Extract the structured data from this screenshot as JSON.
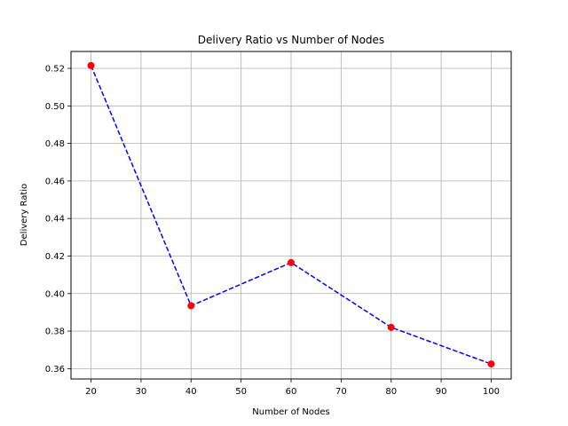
{
  "chart_data": {
    "type": "line",
    "title": "Delivery Ratio vs Number of Nodes",
    "xlabel": "Number of Nodes",
    "ylabel": "Delivery Ratio",
    "x": [
      20,
      40,
      60,
      80,
      100
    ],
    "series": [
      {
        "values": [
          0.5215,
          0.3935,
          0.4165,
          0.382,
          0.3625
        ]
      }
    ],
    "xlim": [
      16,
      104
    ],
    "ylim": [
      0.3545,
      0.529
    ],
    "xticks": [
      20,
      30,
      40,
      50,
      60,
      70,
      80,
      90,
      100
    ],
    "yticks": [
      0.36,
      0.38,
      0.4,
      0.42,
      0.44,
      0.46,
      0.48,
      0.5,
      0.52
    ],
    "xtick_labels": [
      "20",
      "30",
      "40",
      "50",
      "60",
      "70",
      "80",
      "90",
      "100"
    ],
    "ytick_labels": [
      "0.36",
      "0.38",
      "0.40",
      "0.42",
      "0.44",
      "0.46",
      "0.48",
      "0.50",
      "0.52"
    ],
    "grid": true,
    "line_color": "#0000ff",
    "line_style": "dashed",
    "marker_color": "#ff0000"
  }
}
